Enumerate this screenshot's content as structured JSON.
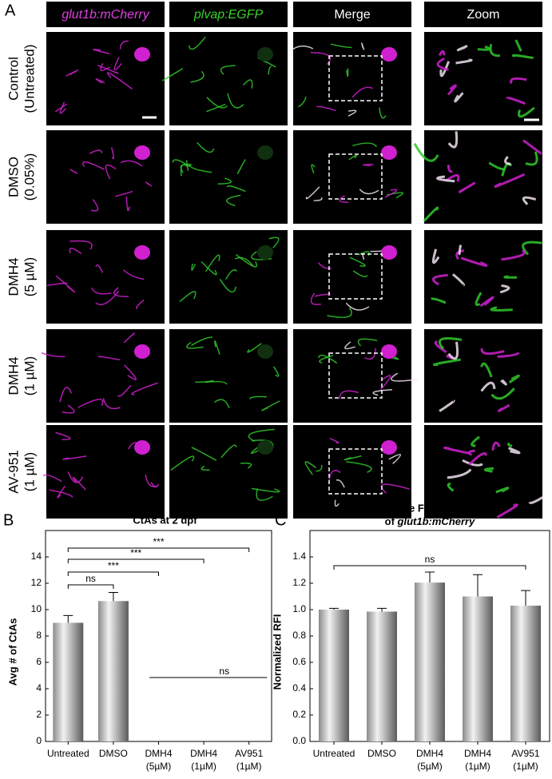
{
  "panel_letters": [
    "A",
    "B",
    "C"
  ],
  "column_headers": [
    "glut1b:mCherry",
    "plvap:EGFP",
    "Merge",
    "Zoom"
  ],
  "row_labels": [
    [
      "Control",
      "(Untreated)"
    ],
    [
      "DMSO",
      "(0.05%)"
    ],
    [
      "DMH4",
      "(5 µM)"
    ],
    [
      "DMH4",
      "(1 µM)"
    ],
    [
      "AV-951",
      "(1 µM)"
    ]
  ],
  "chart_data": [
    {
      "type": "bar",
      "title": "CtAs at 2 dpf",
      "y_label": "Avg # of CtAs",
      "categories": [
        [
          "Untreated"
        ],
        [
          "DMSO"
        ],
        [
          "DMH4",
          "(5µM)"
        ],
        [
          "DMH4",
          "(1µM)"
        ],
        [
          "AV951",
          "(1µM)"
        ]
      ],
      "values": [
        9.0,
        10.65,
        0,
        0,
        0
      ],
      "errors": [
        0.55,
        0.65,
        0,
        0,
        0
      ],
      "ylim": [
        0,
        16
      ],
      "yticks": [
        0,
        2,
        4,
        6,
        8,
        10,
        12,
        14
      ],
      "comparisons": [
        {
          "label": "ns",
          "between": [
            0,
            1
          ],
          "style": "bracket"
        },
        {
          "label": "***",
          "between": [
            0,
            2
          ],
          "style": "bracket"
        },
        {
          "label": "***",
          "between": [
            0,
            3
          ],
          "style": "bracket"
        },
        {
          "label": "***",
          "between": [
            0,
            4
          ],
          "style": "bracket"
        },
        {
          "label": "ns",
          "between": [
            2,
            4
          ],
          "style": "line"
        }
      ]
    },
    {
      "type": "bar",
      "title": {
        "line1": "Relative Fluorescence",
        "line2": "of",
        "line2_italic": "glut1b:mCherry"
      },
      "y_label": "Normalized RFI",
      "categories": [
        [
          "Untreated"
        ],
        [
          "DMSO"
        ],
        [
          "DMH4",
          "(5µM)"
        ],
        [
          "DMH4",
          "(1µM)"
        ],
        [
          "AV951",
          "(1µM)"
        ]
      ],
      "values": [
        1.0,
        0.985,
        1.205,
        1.1,
        1.03
      ],
      "errors": [
        0.01,
        0.025,
        0.08,
        0.165,
        0.115
      ],
      "ylim": [
        0,
        1.6
      ],
      "yticks": [
        {
          "value": 0,
          "label": "0.0"
        },
        0.2,
        0.4,
        0.6,
        0.8,
        {
          "value": 1,
          "label": "1.0"
        },
        1.2,
        1.4
      ],
      "comparisons": [
        {
          "label": "ns",
          "between": [
            0,
            4
          ],
          "style": "bracket"
        }
      ]
    }
  ]
}
